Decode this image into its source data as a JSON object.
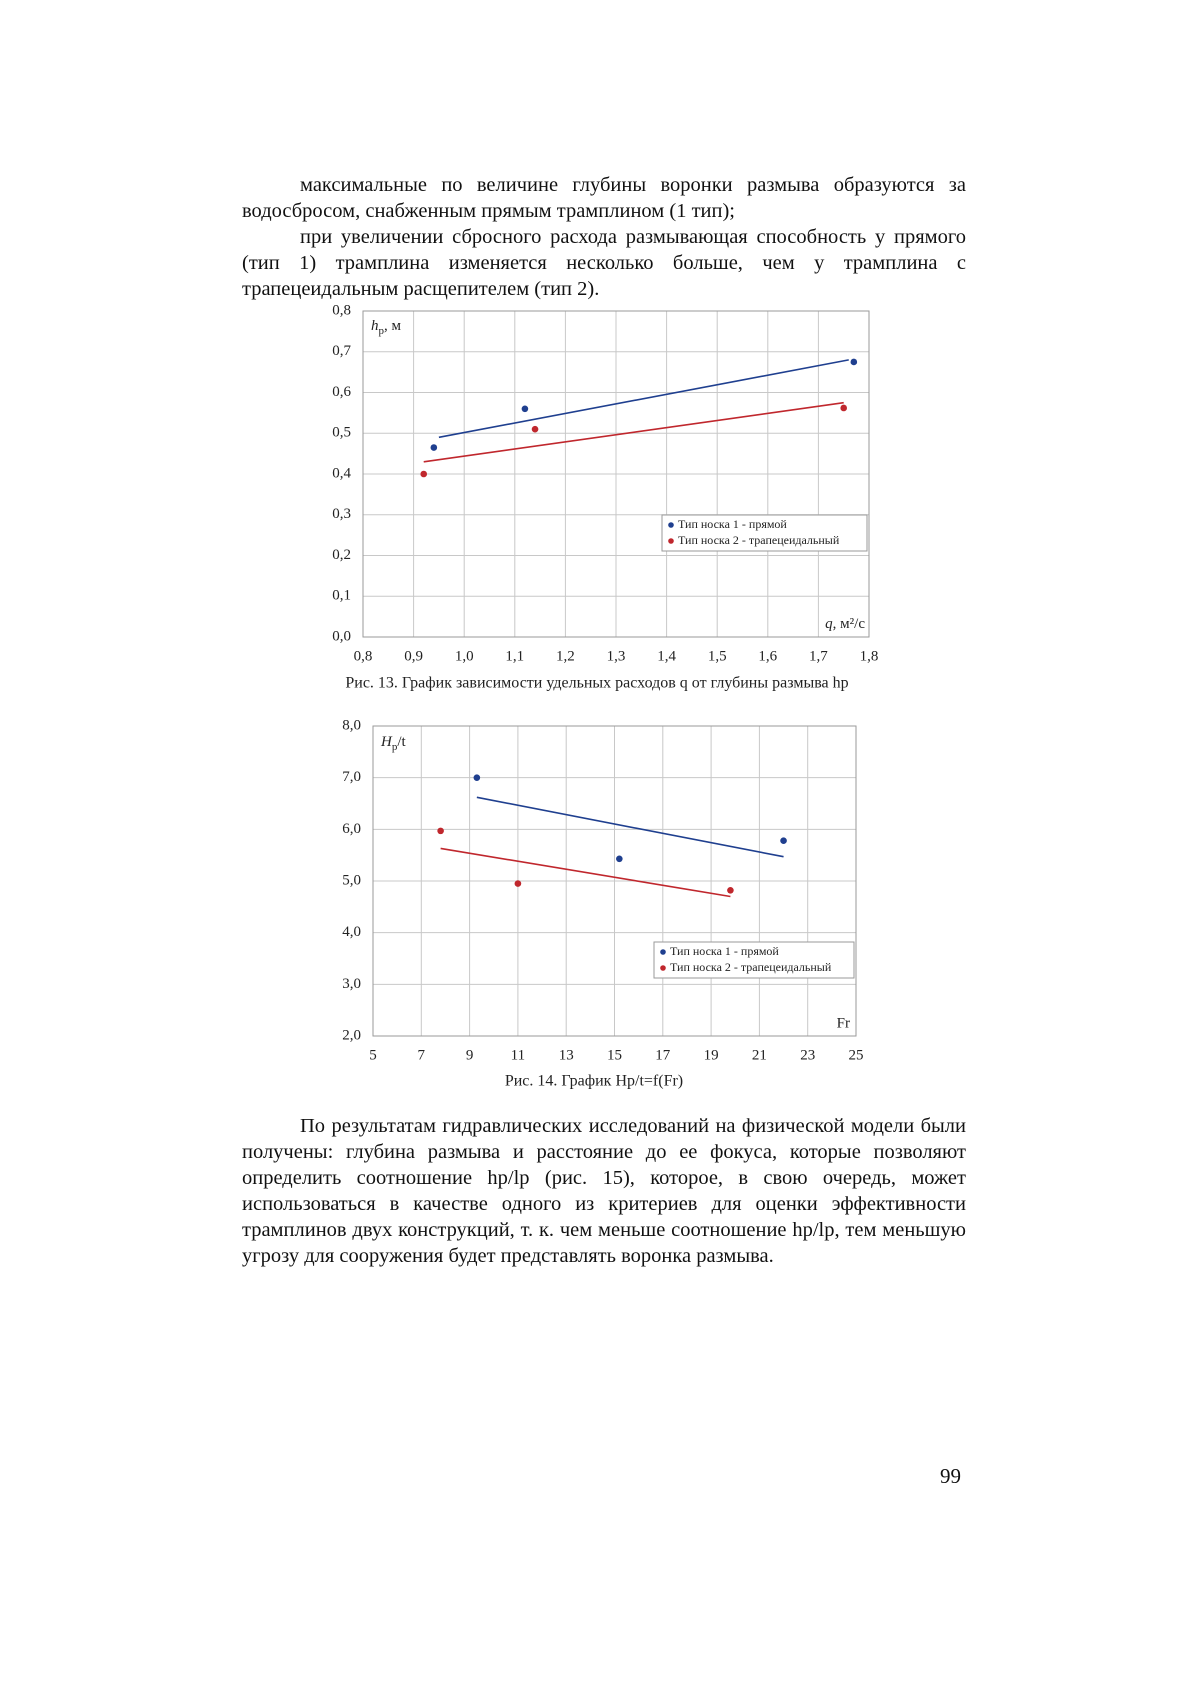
{
  "paragraphs": [
    "максимальные по величине глубины воронки размыва образуются за водосбросом, снабженным прямым трамплином (1 тип);",
    "при увеличении сбросного расхода размывающая способность у прямого (тип 1) трамплина изменяется несколько больше, чем у трамплина с трапецеидальным расщепителем (тип 2).",
    "По результатам гидравлических исследований на физической модели были  получены: глубина размыва и расстояние до ее фокуса, которые позволяют определить соотношение hр/lр (рис. 15), которое, в свою очередь, может использоваться в качестве одного из критериев для оценки эффективности трамплинов двух конструкций, т. к. чем меньше соотношение hр/lр, тем меньшую угрозу для сооружения будет представлять воронка размыва."
  ],
  "chart_data": [
    {
      "type": "scatter",
      "caption": "Рис. 13. График зависимости удельных расходов q от глубины  размыва hр",
      "y_label": {
        "symbol": "h",
        "sub": "р",
        "unit": ", м"
      },
      "x_label": {
        "symbol": "q",
        "unit": ", м²/с"
      },
      "xlim": [
        0.8,
        1.8
      ],
      "xticks": [
        {
          "value": 0.8,
          "label": "0,8"
        },
        {
          "value": 0.9,
          "label": "0,9"
        },
        {
          "value": 1.0,
          "label": "1,0"
        },
        {
          "value": 1.1,
          "label": "1,1"
        },
        {
          "value": 1.2,
          "label": "1,2"
        },
        {
          "value": 1.3,
          "label": "1,3"
        },
        {
          "value": 1.4,
          "label": "1,4"
        },
        {
          "value": 1.5,
          "label": "1,5"
        },
        {
          "value": 1.6,
          "label": "1,6"
        },
        {
          "value": 1.7,
          "label": "1,7"
        },
        {
          "value": 1.8,
          "label": "1,8"
        }
      ],
      "ylim": [
        0,
        0.8
      ],
      "yticks": [
        {
          "value": 0,
          "label": "0,0"
        },
        {
          "value": 0.1,
          "label": "0,1"
        },
        {
          "value": 0.2,
          "label": "0,2"
        },
        {
          "value": 0.3,
          "label": "0,3"
        },
        {
          "value": 0.4,
          "label": "0,4"
        },
        {
          "value": 0.5,
          "label": "0,5"
        },
        {
          "value": 0.6,
          "label": "0,6"
        },
        {
          "value": 0.7,
          "label": "0,7"
        },
        {
          "value": 0.8,
          "label": "0,8"
        }
      ],
      "grid": true,
      "legend": "lower right",
      "series": [
        {
          "name": "Тип носка 1 - прямой",
          "color": "#1f3f8f",
          "x": [
            0.94,
            1.12,
            1.77
          ],
          "values": [
            0.465,
            0.56,
            0.675
          ],
          "trend": {
            "x": [
              0.95,
              1.76
            ],
            "values": [
              0.49,
              0.68
            ]
          }
        },
        {
          "name": "Тип носка 2 - трапецеидальный",
          "color": "#c0272d",
          "x": [
            0.92,
            1.14,
            1.75
          ],
          "values": [
            0.4,
            0.51,
            0.562
          ],
          "trend": {
            "x": [
              0.92,
              1.75
            ],
            "values": [
              0.43,
              0.575
            ]
          }
        }
      ]
    },
    {
      "type": "scatter",
      "caption": "Рис. 14.  График Hр/t=f(Fr)",
      "y_label": {
        "symbol": "H",
        "sub": "р",
        "unit": "/t"
      },
      "x_label": "Fr",
      "xlim": [
        5,
        25
      ],
      "xticks": [
        5,
        7,
        9,
        11,
        13,
        15,
        17,
        19,
        21,
        23,
        25
      ],
      "ylim": [
        2,
        8
      ],
      "yticks": [
        {
          "value": 2,
          "label": "2,0"
        },
        {
          "value": 3,
          "label": "3,0"
        },
        {
          "value": 4,
          "label": "4,0"
        },
        {
          "value": 5,
          "label": "5,0"
        },
        {
          "value": 6,
          "label": "6,0"
        },
        {
          "value": 7,
          "label": "7,0"
        },
        {
          "value": 8,
          "label": "8,0"
        }
      ],
      "grid": true,
      "legend": "lower right",
      "series": [
        {
          "name": "Тип носка 1 - прямой",
          "color": "#1f3f8f",
          "x": [
            9.3,
            15.2,
            22
          ],
          "values": [
            7.0,
            5.43,
            5.78
          ],
          "trend": {
            "x": [
              9.3,
              22
            ],
            "values": [
              6.62,
              5.47
            ]
          }
        },
        {
          "name": "Тип носка 2 - трапецеидальный",
          "color": "#c0272d",
          "x": [
            7.8,
            11,
            19.8
          ],
          "values": [
            5.97,
            4.95,
            4.82
          ],
          "trend": {
            "x": [
              7.8,
              19.8
            ],
            "values": [
              5.63,
              4.7
            ]
          }
        }
      ]
    }
  ],
  "page_number": "99"
}
